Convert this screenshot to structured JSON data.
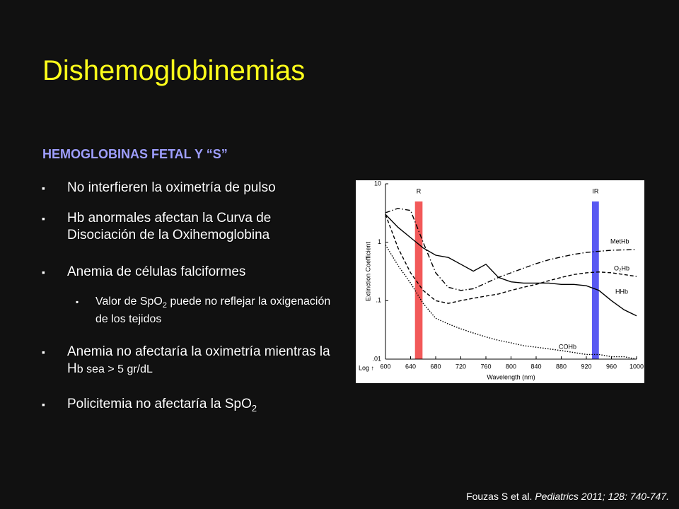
{
  "title": "Dishemoglobinemias",
  "heading": "HEMOGLOBINAS FETAL Y “S”",
  "bullets": [
    {
      "text": "No interfieren la oximetría de pulso"
    },
    {
      "text": "Hb anormales afectan la Curva de Disociación de la Oxihemoglobina"
    },
    {
      "text": "Anemia de células falciformes",
      "sub": {
        "before": "Valor de SpO",
        "subscript": "2",
        "after": " puede no reflejar la oxigenación de los tejidos"
      }
    },
    {
      "text": "Anemia no afectaría la oximetría mientras la H",
      "small": "b sea > 5 gr/dL"
    },
    {
      "text": "Policitemia no afectaría la SpO",
      "subscript": "2"
    }
  ],
  "citation": {
    "authors": "Fouzas S et al.",
    "journal": "Pediatrics 2011; 128: 740-747."
  },
  "chart_data": {
    "type": "line",
    "y_label": "Extinction Coefficient",
    "x_label": "Wavelength (nm)",
    "log_note": "Log ↑",
    "log_y": true,
    "x": [
      600,
      620,
      640,
      660,
      680,
      700,
      720,
      740,
      760,
      780,
      800,
      820,
      840,
      860,
      880,
      900,
      920,
      940,
      960,
      980,
      1000
    ],
    "xlim": [
      600,
      1000
    ],
    "xticks": [
      600,
      640,
      680,
      720,
      760,
      800,
      840,
      880,
      920,
      960,
      1000
    ],
    "ylim": [
      0.01,
      10
    ],
    "yticks": [
      {
        "value": 10,
        "label": "10"
      },
      {
        "value": 1,
        "label": "1"
      },
      {
        "value": 0.1,
        "label": ".1"
      },
      {
        "value": 0.01,
        "label": ".01"
      }
    ],
    "bands": [
      {
        "label": "R",
        "range": [
          647,
          659
        ],
        "color": "#f03c3c"
      },
      {
        "label": "IR",
        "range": [
          929,
          940
        ],
        "color": "#3c3cf0"
      }
    ],
    "series": [
      {
        "name": "MetHb",
        "color": "#000000",
        "style": "dashdot",
        "values": [
          3.2,
          3.8,
          3.5,
          1.0,
          0.3,
          0.17,
          0.15,
          0.16,
          0.2,
          0.25,
          0.3,
          0.36,
          0.43,
          0.5,
          0.56,
          0.62,
          0.67,
          0.7,
          0.73,
          0.74,
          0.75
        ]
      },
      {
        "name": "O₂Hb",
        "color": "#000000",
        "style": "dashed",
        "values": [
          3.0,
          0.8,
          0.3,
          0.15,
          0.1,
          0.09,
          0.1,
          0.11,
          0.12,
          0.13,
          0.15,
          0.17,
          0.19,
          0.22,
          0.25,
          0.28,
          0.3,
          0.31,
          0.3,
          0.28,
          0.26
        ]
      },
      {
        "name": "HHb",
        "color": "#000000",
        "style": "solid",
        "values": [
          3.0,
          1.8,
          1.2,
          0.8,
          0.6,
          0.55,
          0.42,
          0.32,
          0.42,
          0.25,
          0.21,
          0.2,
          0.2,
          0.2,
          0.19,
          0.19,
          0.18,
          0.15,
          0.1,
          0.07,
          0.055
        ]
      },
      {
        "name": "COHb",
        "color": "#000000",
        "style": "dotted",
        "values": [
          0.9,
          0.4,
          0.2,
          0.09,
          0.05,
          0.04,
          0.033,
          0.028,
          0.024,
          0.021,
          0.019,
          0.017,
          0.016,
          0.015,
          0.014,
          0.013,
          0.012,
          0.012,
          0.011,
          0.011,
          0.01
        ]
      }
    ]
  }
}
